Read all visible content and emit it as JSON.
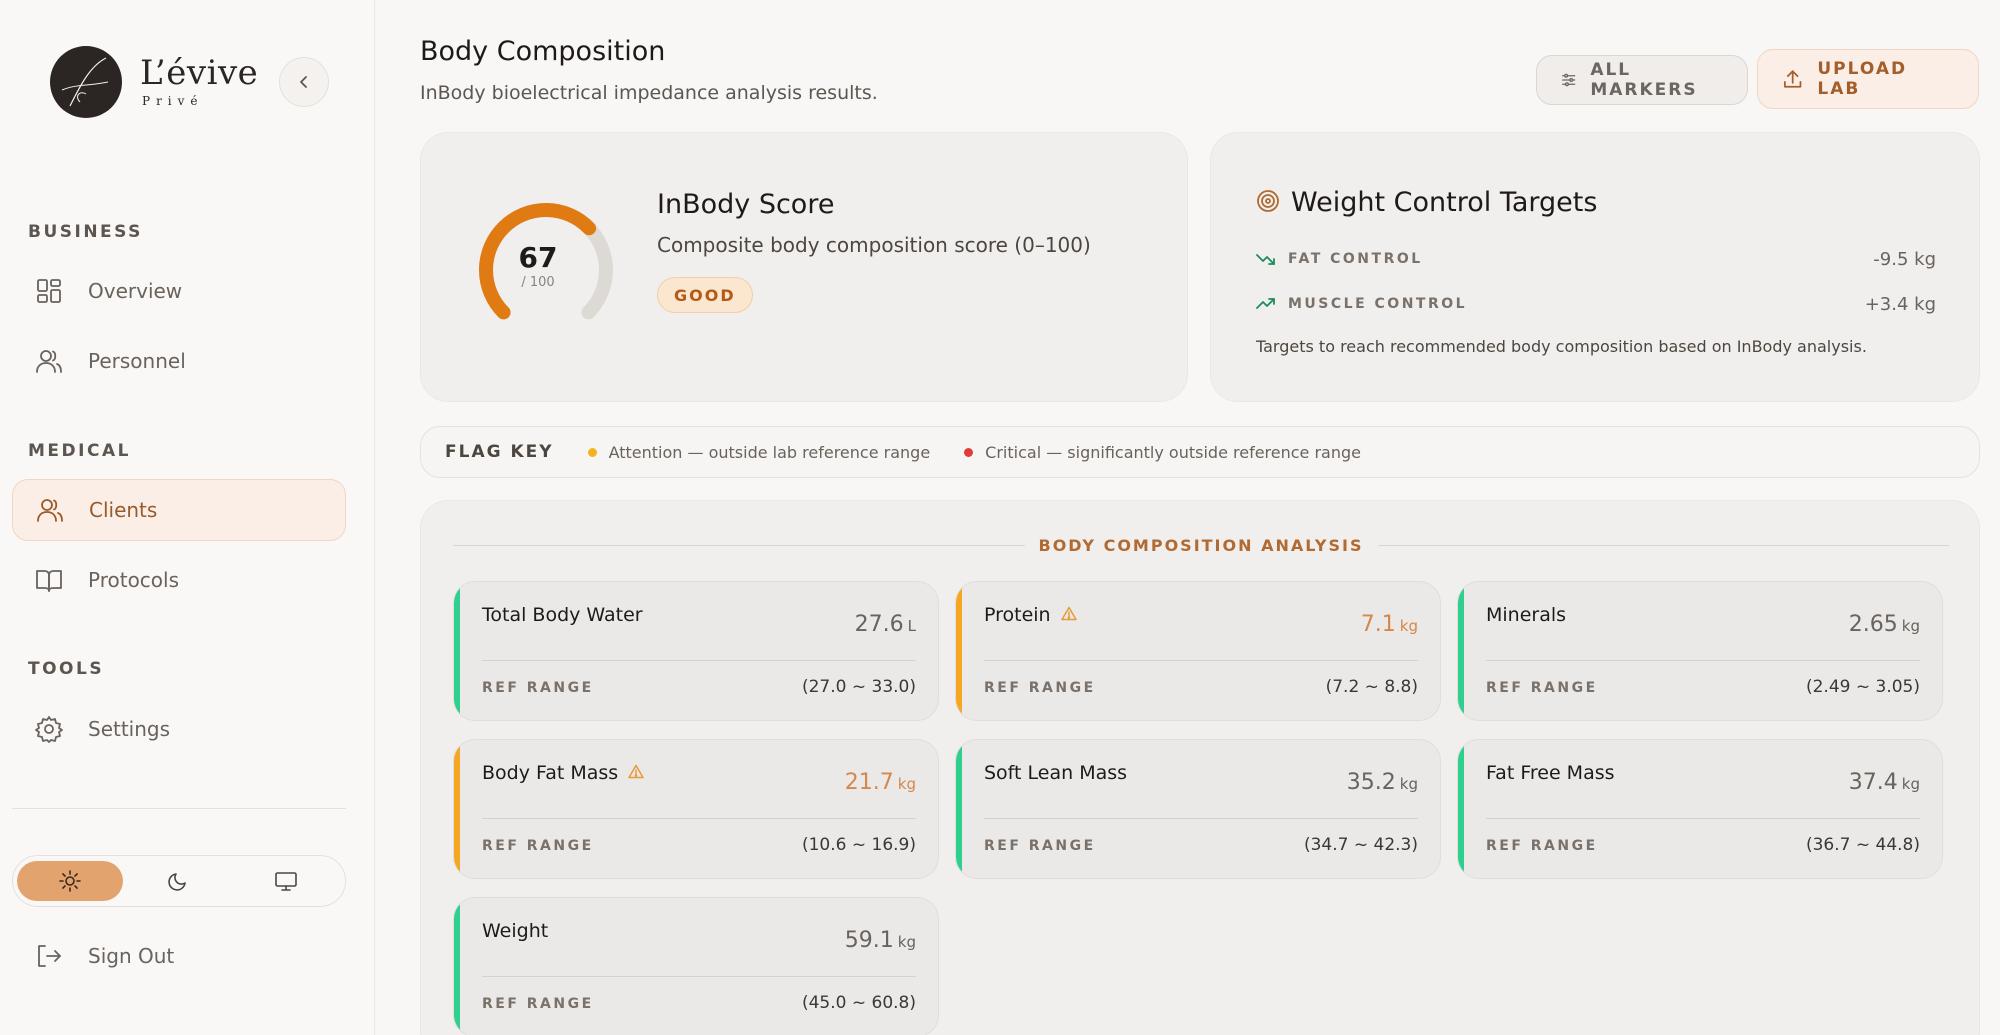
{
  "brand": {
    "name": "L’évive",
    "sub": "Privé"
  },
  "sidebar": {
    "sections": [
      {
        "label": "BUSINESS"
      },
      {
        "label": "MEDICAL"
      },
      {
        "label": "TOOLS"
      }
    ],
    "items": [
      {
        "label": "Overview",
        "icon": "grid-icon"
      },
      {
        "label": "Personnel",
        "icon": "users-icon"
      },
      {
        "label": "Clients",
        "icon": "users-icon",
        "active": true
      },
      {
        "label": "Protocols",
        "icon": "book-icon"
      },
      {
        "label": "Settings",
        "icon": "gear-icon"
      }
    ],
    "signout": "Sign Out"
  },
  "header": {
    "title": "Body Composition",
    "subtitle": "InBody bioelectrical impedance analysis results.",
    "all_markers": "ALL MARKERS",
    "upload": "UPLOAD LAB"
  },
  "score": {
    "value": "67",
    "denominator": "/ 100",
    "fraction": 0.67,
    "title": "InBody Score",
    "subtitle": "Composite body composition score (0–100)",
    "badge": "GOOD"
  },
  "targets": {
    "title": "Weight Control Targets",
    "rows": [
      {
        "label": "FAT CONTROL",
        "value": "-9.5 kg"
      },
      {
        "label": "MUSCLE CONTROL",
        "value": "+3.4 kg"
      }
    ],
    "note": "Targets to reach recommended body composition based on InBody analysis."
  },
  "flag_key": {
    "title": "FLAG KEY",
    "attention": "Attention — outside lab reference range",
    "critical": "Critical — significantly outside reference range"
  },
  "analysis": {
    "title": "BODY COMPOSITION ANALYSIS",
    "ref_label": "REF RANGE",
    "metrics": [
      {
        "name": "Total Body Water",
        "value": "27.6",
        "unit": "L",
        "range": "(27.0 ~ 33.0)",
        "flag": false
      },
      {
        "name": "Protein",
        "value": "7.1",
        "unit": "kg",
        "range": "(7.2 ~ 8.8)",
        "flag": true
      },
      {
        "name": "Minerals",
        "value": "2.65",
        "unit": "kg",
        "range": "(2.49 ~ 3.05)",
        "flag": false
      },
      {
        "name": "Body Fat Mass",
        "value": "21.7",
        "unit": "kg",
        "range": "(10.6 ~ 16.9)",
        "flag": true
      },
      {
        "name": "Soft Lean Mass",
        "value": "35.2",
        "unit": "kg",
        "range": "(34.7 ~ 42.3)",
        "flag": false
      },
      {
        "name": "Fat Free Mass",
        "value": "37.4",
        "unit": "kg",
        "range": "(36.7 ~ 44.8)",
        "flag": false
      },
      {
        "name": "Weight",
        "value": "59.1",
        "unit": "kg",
        "range": "(45.0 ~ 60.8)",
        "flag": false
      }
    ]
  },
  "colors": {
    "normal": "#2fcf8d",
    "attention": "#f5a623",
    "critical": "#e23b3b",
    "accent": "#e07a12"
  }
}
